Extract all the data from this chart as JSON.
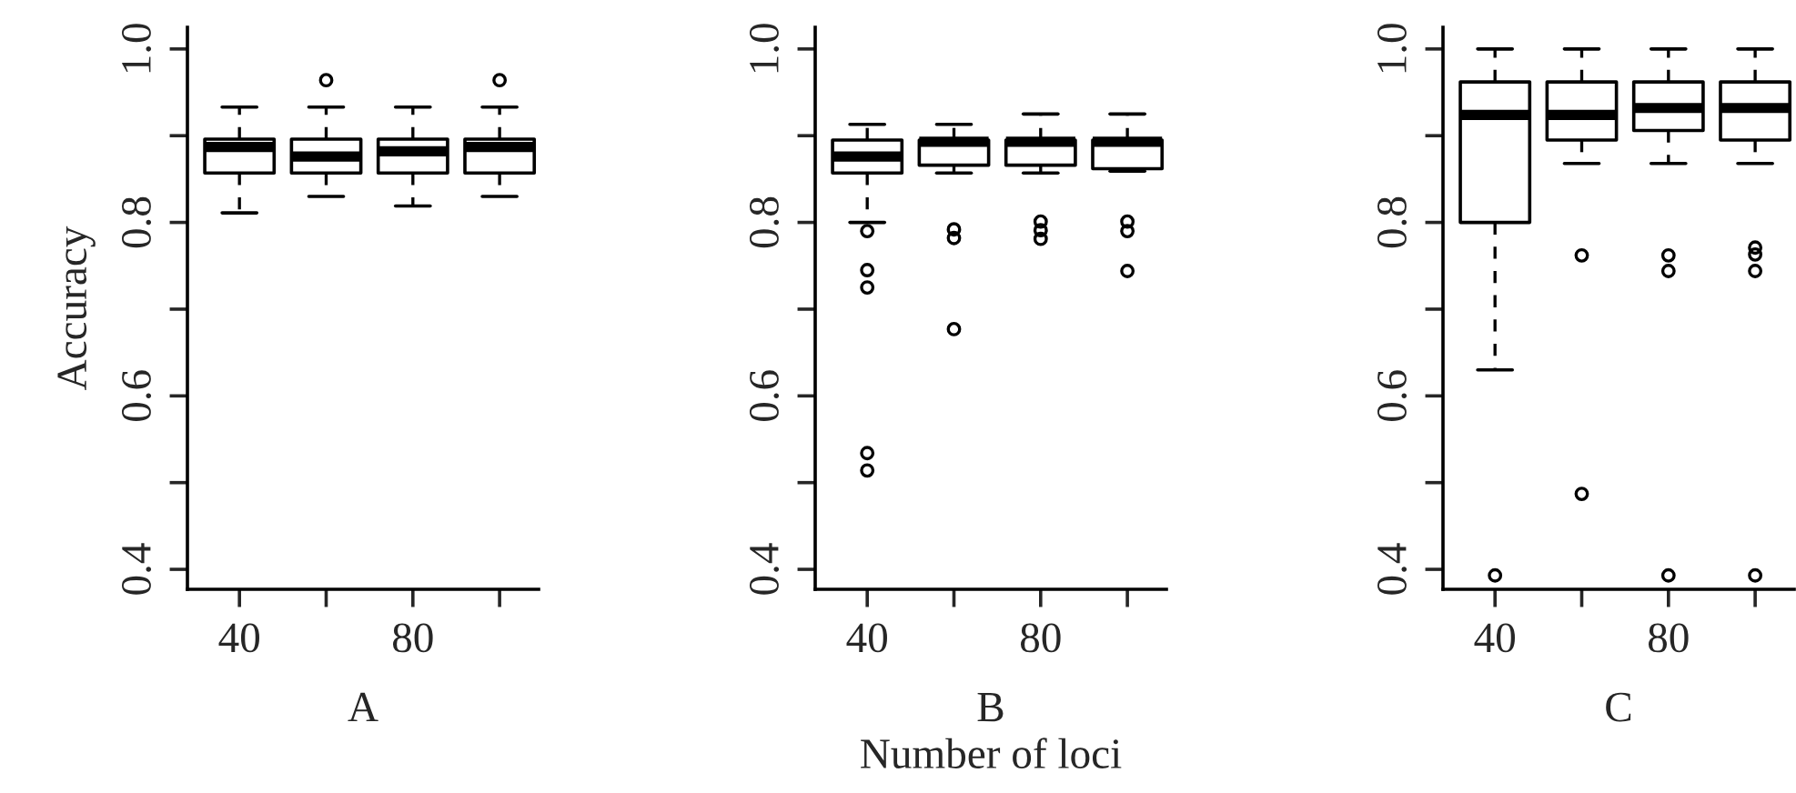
{
  "chart_data": [
    {
      "type": "box",
      "xlabel": "A",
      "ylabel": "Accuracy",
      "categories": [
        "40",
        null,
        "80",
        null
      ],
      "ylim": [
        0.377,
        1.025
      ],
      "yticks": [
        0.4,
        {
          "value": 0.5,
          "label": null
        },
        0.6,
        {
          "value": 0.7,
          "label": null
        },
        0.8,
        {
          "value": 0.9,
          "label": null
        },
        {
          "value": 1,
          "label": "1.0"
        }
      ],
      "grid": false,
      "legend": false,
      "boxes": [
        {
          "low": 0.811,
          "q1": 0.857,
          "median": 0.887,
          "q3": 0.896,
          "high": 0.933
        },
        {
          "low": 0.83,
          "q1": 0.857,
          "median": 0.876,
          "q3": 0.896,
          "high": 0.933,
          "outliers": [
            0.964
          ]
        },
        {
          "low": 0.819,
          "q1": 0.857,
          "median": 0.882,
          "q3": 0.896,
          "high": 0.933
        },
        {
          "low": 0.83,
          "q1": 0.857,
          "median": 0.887,
          "q3": 0.896,
          "high": 0.933,
          "outliers": [
            0.964
          ]
        }
      ]
    },
    {
      "type": "box",
      "xlabel": "B",
      "annotations": [
        "Number of loci"
      ],
      "categories": [
        "40",
        null,
        "80",
        null
      ],
      "ylim": [
        0.377,
        1.025
      ],
      "yticks": [
        0.4,
        {
          "value": 0.5,
          "label": null
        },
        0.6,
        {
          "value": 0.7,
          "label": null
        },
        0.8,
        {
          "value": 0.9,
          "label": null
        },
        {
          "value": 1,
          "label": "1.0"
        }
      ],
      "grid": false,
      "legend": false,
      "boxes": [
        {
          "low": 0.8,
          "q1": 0.857,
          "median": 0.876,
          "q3": 0.895,
          "high": 0.913,
          "outliers": [
            0.79,
            0.745,
            0.725,
            0.534,
            0.514
          ]
        },
        {
          "low": 0.857,
          "q1": 0.866,
          "median": 0.893,
          "q3": 0.895,
          "high": 0.913,
          "outliers": [
            0.792,
            0.782,
            0.677
          ]
        },
        {
          "low": 0.857,
          "q1": 0.866,
          "median": 0.893,
          "q3": 0.895,
          "high": 0.925,
          "outliers": [
            0.801,
            0.791,
            0.781
          ]
        },
        {
          "low": 0.859,
          "q1": 0.862,
          "median": 0.893,
          "q3": 0.895,
          "high": 0.925,
          "outliers": [
            0.801,
            0.79,
            0.744
          ]
        }
      ]
    },
    {
      "type": "box",
      "xlabel": "C",
      "categories": [
        "40",
        null,
        "80",
        null
      ],
      "ylim": [
        0.377,
        1.025
      ],
      "yticks": [
        0.4,
        {
          "value": 0.5,
          "label": null
        },
        0.6,
        {
          "value": 0.7,
          "label": null
        },
        0.8,
        {
          "value": 0.9,
          "label": null
        },
        {
          "value": 1,
          "label": "1.0"
        }
      ],
      "grid": false,
      "legend": false,
      "boxes": [
        {
          "low": 0.63,
          "q1": 0.8,
          "median": 0.924,
          "q3": 0.962,
          "high": 1.0,
          "outliers": [
            0.393
          ]
        },
        {
          "low": 0.868,
          "q1": 0.895,
          "median": 0.924,
          "q3": 0.962,
          "high": 1.0,
          "outliers": [
            0.762,
            0.487
          ]
        },
        {
          "low": 0.868,
          "q1": 0.906,
          "median": 0.932,
          "q3": 0.962,
          "high": 1.0,
          "outliers": [
            0.762,
            0.744,
            0.393
          ]
        },
        {
          "low": 0.868,
          "q1": 0.895,
          "median": 0.932,
          "q3": 0.962,
          "high": 1.0,
          "outliers": [
            0.771,
            0.763,
            0.744,
            0.393
          ]
        }
      ]
    }
  ]
}
